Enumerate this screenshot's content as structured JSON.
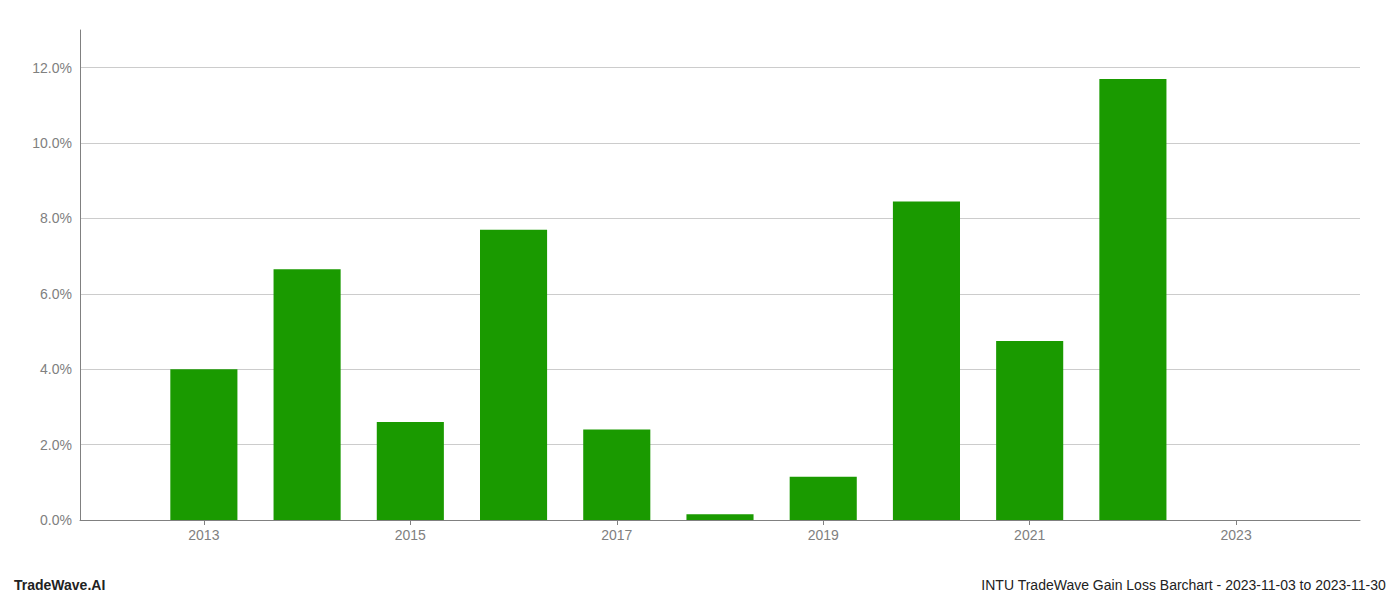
{
  "chart_data": {
    "type": "bar",
    "x": [
      2013,
      2014,
      2015,
      2016,
      2017,
      2018,
      2019,
      2020,
      2021,
      2022
    ],
    "values": [
      0.04,
      0.0665,
      0.026,
      0.077,
      0.024,
      0.0015,
      0.0115,
      0.0845,
      0.0475,
      0.117
    ],
    "color": "#1a9a00",
    "xlim": [
      2011.8,
      2024.2
    ],
    "xticks": [
      2013,
      2015,
      2017,
      2019,
      2021,
      2023
    ],
    "ylim": [
      0,
      0.13
    ],
    "yticks": [
      {
        "value": 0.0,
        "label": "0.0%"
      },
      {
        "value": 0.02,
        "label": "2.0%"
      },
      {
        "value": 0.04,
        "label": "4.0%"
      },
      {
        "value": 0.06,
        "label": "6.0%"
      },
      {
        "value": 0.08,
        "label": "8.0%"
      },
      {
        "value": 0.1,
        "label": "10.0%"
      },
      {
        "value": 0.12,
        "label": "12.0%"
      }
    ],
    "grid": true,
    "annotations": [
      "TradeWave.AI",
      "INTU TradeWave Gain Loss Barchart - 2023-11-03 to 2023-11-30"
    ]
  }
}
